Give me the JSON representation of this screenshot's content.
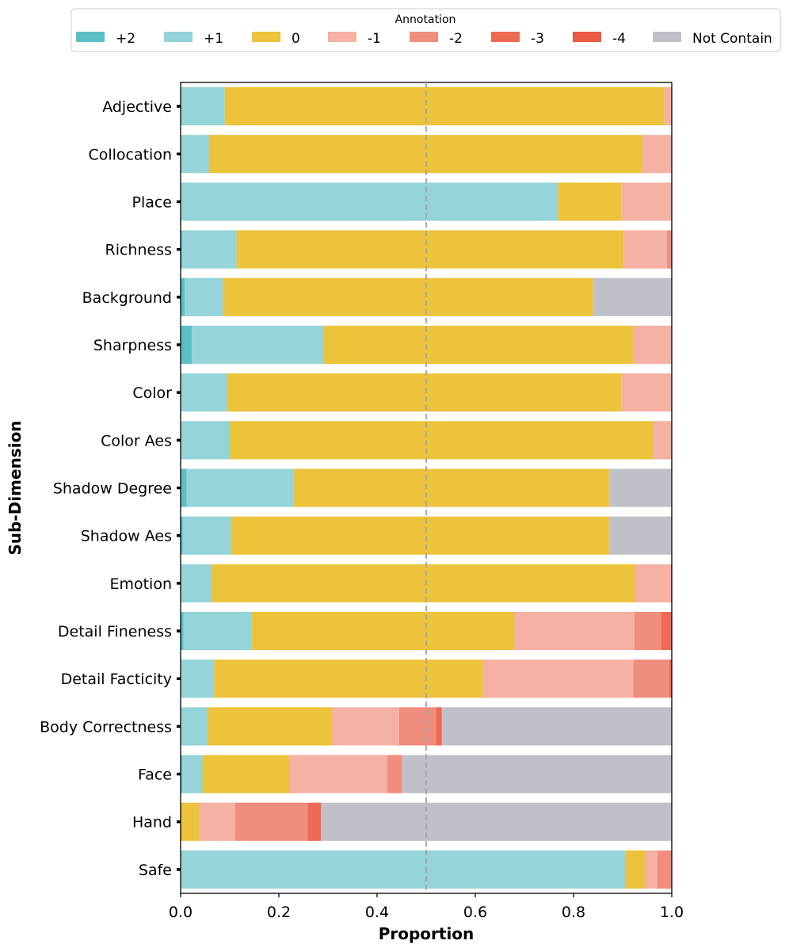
{
  "chart_data": {
    "type": "bar",
    "orientation": "horizontal",
    "stacked": true,
    "xlabel": "Proportion",
    "ylabel": "Sub-Dimension",
    "xlim": [
      0,
      1.0
    ],
    "xticks": [
      0.0,
      0.2,
      0.4,
      0.6,
      0.8,
      1.0
    ],
    "xtick_labels": [
      "0.0",
      "0.2",
      "0.4",
      "0.6",
      "0.8",
      "1.0"
    ],
    "reference_line": {
      "x": 0.5,
      "style": "dashed"
    },
    "legend": {
      "title": "Annotation",
      "placement": "top",
      "columns": 8
    },
    "categories": [
      "Adjective",
      "Collocation",
      "Place",
      "Richness",
      "Background",
      "Sharpness",
      "Color",
      "Color Aes",
      "Shadow Degree",
      "Shadow Aes",
      "Emotion",
      "Detail Fineness",
      "Detail Facticity",
      "Body Correctness",
      "Face",
      "Hand",
      "Safe"
    ],
    "series": [
      {
        "name": "+2",
        "color": "#5bc0c6",
        "values": [
          0,
          0,
          0,
          0.003,
          0.008,
          0.023,
          0,
          0,
          0.012,
          0.004,
          0,
          0.006,
          0,
          0,
          0.003,
          0,
          0
        ]
      },
      {
        "name": "+1",
        "color": "#95d4d8",
        "values": [
          0.09,
          0.058,
          0.768,
          0.111,
          0.079,
          0.268,
          0.095,
          0.1,
          0.218,
          0.099,
          0.063,
          0.139,
          0.068,
          0.055,
          0.042,
          0,
          0.906
        ]
      },
      {
        "name": "0",
        "color": "#ecc33a",
        "values": [
          0.895,
          0.882,
          0.13,
          0.788,
          0.753,
          0.631,
          0.803,
          0.862,
          0.643,
          0.77,
          0.862,
          0.534,
          0.547,
          0.253,
          0.176,
          0.038,
          0.04
        ]
      },
      {
        "name": "-1",
        "color": "#f5b1a3",
        "values": [
          0.015,
          0.06,
          0.102,
          0.088,
          0,
          0.078,
          0.102,
          0.038,
          0,
          0,
          0.073,
          0.245,
          0.307,
          0.137,
          0.2,
          0.073,
          0.025
        ]
      },
      {
        "name": "-2",
        "color": "#f08d7c",
        "values": [
          0,
          0,
          0,
          0.01,
          0,
          0,
          0,
          0,
          0,
          0,
          0.002,
          0.055,
          0.073,
          0.075,
          0.03,
          0.148,
          0.029
        ]
      },
      {
        "name": "-3",
        "color": "#ee6a52",
        "values": [
          0,
          0,
          0,
          0,
          0,
          0,
          0,
          0,
          0,
          0,
          0,
          0.021,
          0.005,
          0.012,
          0,
          0.027,
          0
        ]
      },
      {
        "name": "-4",
        "color": "#eb5a43",
        "values": [
          0,
          0,
          0,
          0,
          0,
          0,
          0,
          0,
          0,
          0,
          0,
          0,
          0,
          0,
          0,
          0,
          0
        ]
      },
      {
        "name": "Not Contain",
        "color": "#c0c0c8",
        "values": [
          0,
          0,
          0,
          0,
          0.16,
          0,
          0,
          0,
          0.127,
          0.127,
          0,
          0,
          0,
          0.468,
          0.549,
          0.714,
          0
        ]
      }
    ]
  }
}
